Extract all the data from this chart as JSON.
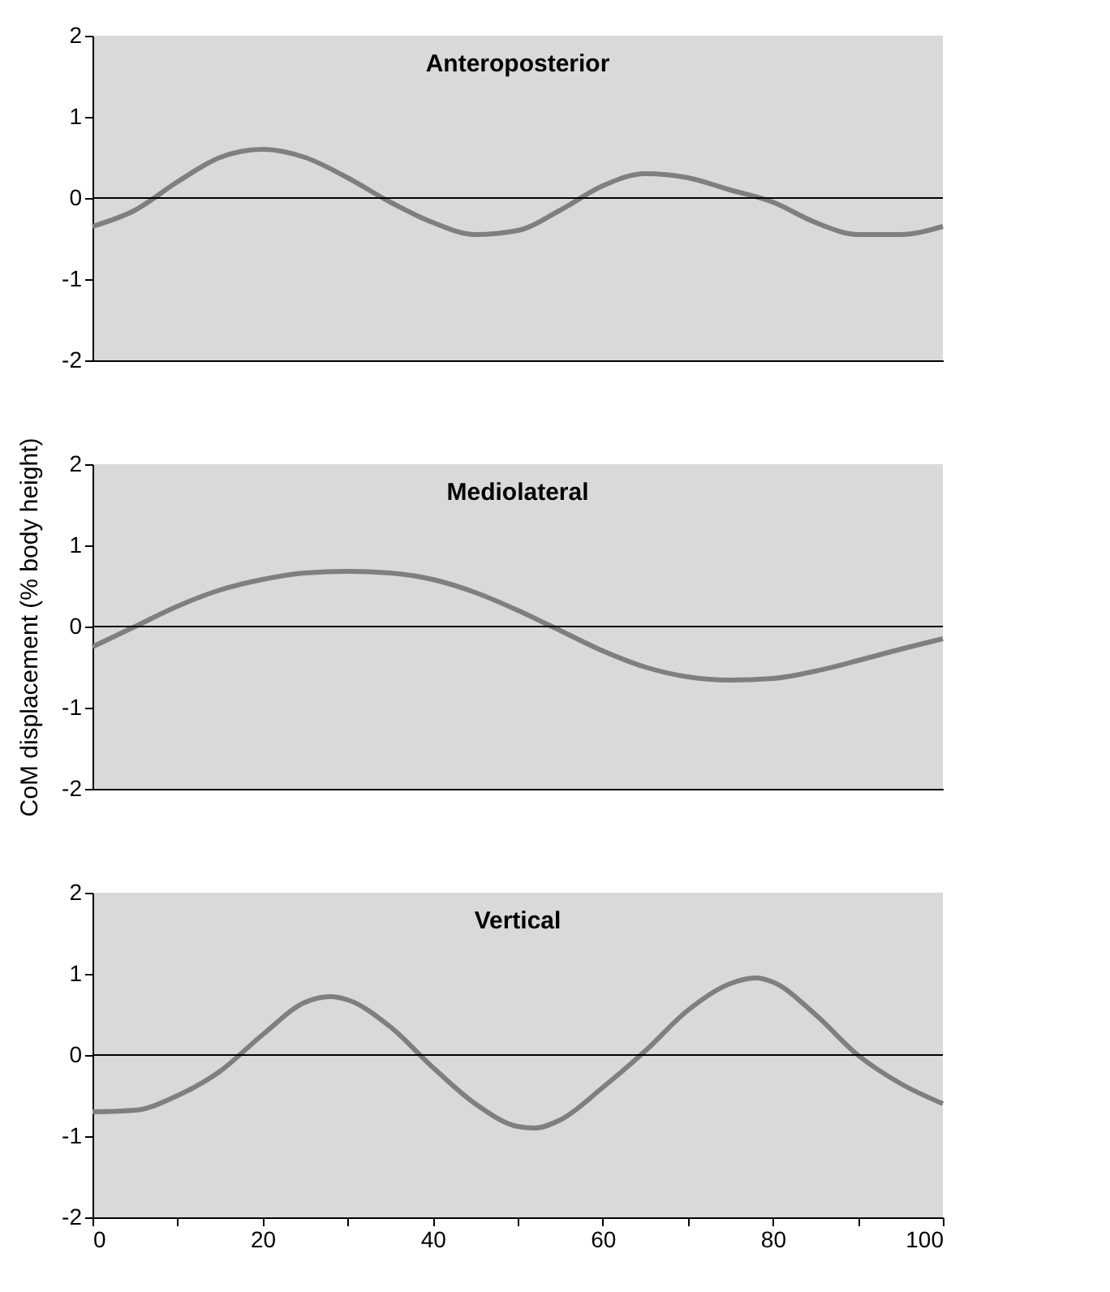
{
  "chart_data": [
    {
      "type": "line",
      "title": "Anteroposterior",
      "x": [
        0,
        5,
        10,
        15,
        20,
        25,
        30,
        35,
        40,
        45,
        50,
        55,
        60,
        65,
        70,
        75,
        80,
        85,
        90,
        95,
        100
      ],
      "series": [
        {
          "color": "#7f7f7f",
          "values": [
            -0.35,
            -0.15,
            0.2,
            0.5,
            0.6,
            0.5,
            0.25,
            -0.05,
            -0.3,
            -0.45,
            -0.4,
            -0.15,
            0.15,
            0.3,
            0.25,
            0.1,
            -0.05,
            -0.3,
            -0.45,
            -0.45,
            -0.35
          ]
        }
      ],
      "xlim": [
        0,
        100
      ],
      "ylim": [
        -2,
        2
      ],
      "yticks": [
        -2,
        -1,
        0,
        1,
        2
      ],
      "tick_labels": "y",
      "grid": false,
      "line_style": "solid",
      "marker": "none",
      "ref_lines": [
        {
          "axis": "y",
          "value": 0,
          "color": "#000000"
        }
      ]
    },
    {
      "type": "line",
      "title": "Mediolateral",
      "ylabel": "CoM displacement (% body height)",
      "x": [
        0,
        5,
        10,
        15,
        20,
        25,
        30,
        35,
        40,
        45,
        50,
        55,
        60,
        65,
        70,
        75,
        80,
        85,
        90,
        95,
        100
      ],
      "series": [
        {
          "color": "#7f7f7f",
          "values": [
            -0.25,
            0.0,
            0.25,
            0.45,
            0.58,
            0.66,
            0.68,
            0.66,
            0.58,
            0.42,
            0.2,
            -0.05,
            -0.3,
            -0.5,
            -0.62,
            -0.66,
            -0.64,
            -0.55,
            -0.42,
            -0.28,
            -0.15
          ]
        }
      ],
      "xlim": [
        0,
        100
      ],
      "ylim": [
        -2,
        2
      ],
      "yticks": [
        -2,
        -1,
        0,
        1,
        2
      ],
      "tick_labels": "y",
      "grid": false,
      "line_style": "solid",
      "marker": "none",
      "ref_lines": [
        {
          "axis": "y",
          "value": 0,
          "color": "#000000"
        }
      ]
    },
    {
      "type": "line",
      "title": "Vertical",
      "x": [
        0,
        5,
        10,
        15,
        20,
        25,
        28,
        30,
        35,
        40,
        45,
        50,
        52,
        55,
        60,
        65,
        70,
        75,
        78,
        80,
        85,
        90,
        95,
        100
      ],
      "series": [
        {
          "color": "#7f7f7f",
          "values": [
            -0.7,
            -0.68,
            -0.5,
            -0.2,
            0.25,
            0.65,
            0.72,
            0.68,
            0.35,
            -0.15,
            -0.6,
            -0.88,
            -0.9,
            -0.8,
            -0.4,
            0.05,
            0.55,
            0.88,
            0.95,
            0.9,
            0.5,
            0.0,
            -0.35,
            -0.6
          ]
        }
      ],
      "xlim": [
        0,
        100
      ],
      "xticks": [
        0,
        {
          "value": 10,
          "label": null
        },
        20,
        {
          "value": 30,
          "label": null
        },
        40,
        {
          "value": 50,
          "label": null
        },
        60,
        {
          "value": 70,
          "label": null
        },
        80,
        {
          "value": 90,
          "label": null
        },
        100
      ],
      "ylim": [
        -2,
        2
      ],
      "yticks": [
        -2,
        -1,
        0,
        1,
        2
      ],
      "grid": false,
      "line_style": "solid",
      "marker": "none",
      "ref_lines": [
        {
          "axis": "y",
          "value": 0,
          "color": "#000000"
        }
      ]
    }
  ]
}
